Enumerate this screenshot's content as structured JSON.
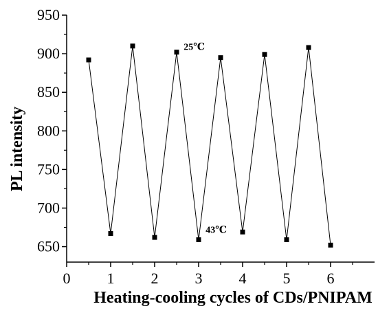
{
  "chart_data": {
    "type": "line",
    "title": "",
    "xlabel": "Heating-cooling cycles of CDs/PNIPAM",
    "ylabel": "PL intensity",
    "xlim": [
      0,
      7
    ],
    "ylim": [
      630,
      950
    ],
    "xticks": [
      0,
      1,
      2,
      3,
      4,
      5,
      6
    ],
    "yticks": [
      650,
      700,
      750,
      800,
      850,
      900,
      950
    ],
    "grid": false,
    "legend": "none",
    "series": [
      {
        "marker": "square",
        "color": "#000000",
        "x": [
          0.5,
          1,
          1.5,
          2,
          2.5,
          3,
          3.5,
          4,
          4.5,
          5,
          5.5,
          6
        ],
        "y": [
          892,
          667,
          910,
          662,
          902,
          659,
          895,
          669,
          899,
          659,
          908,
          652
        ]
      }
    ],
    "annotations": [
      {
        "text": "25℃",
        "x": 2.9,
        "y": 905
      },
      {
        "text": "43℃",
        "x": 3.4,
        "y": 668
      }
    ]
  }
}
